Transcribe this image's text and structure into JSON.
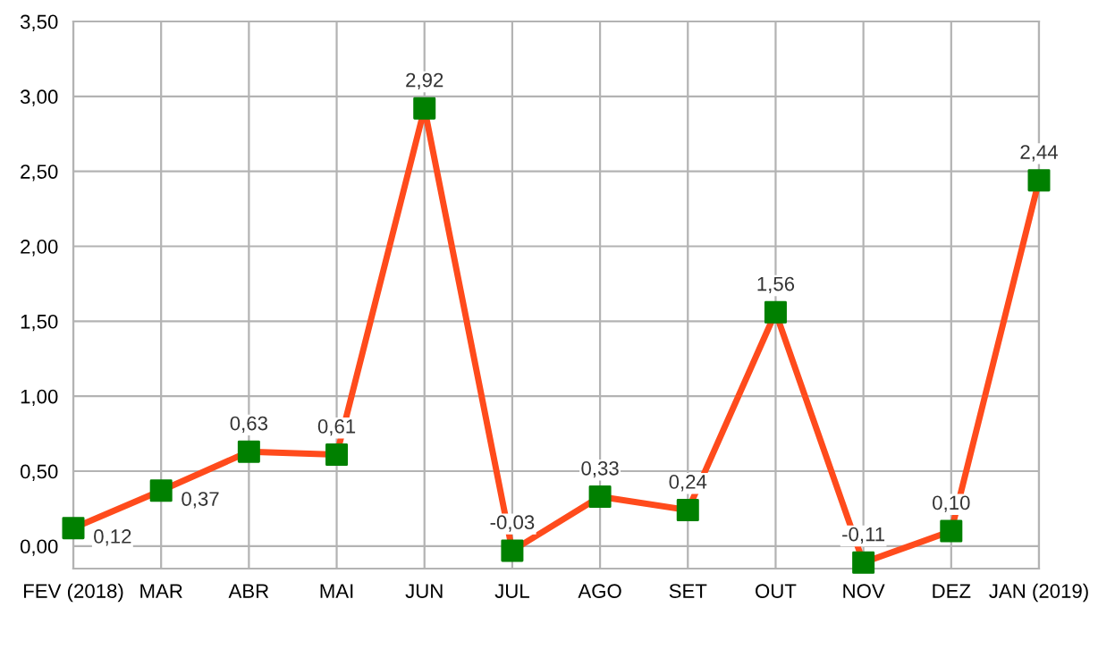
{
  "chart_data": {
    "type": "line",
    "categories": [
      "FEV (2018)",
      "MAR",
      "ABR",
      "MAI",
      "JUN",
      "JUL",
      "AGO",
      "SET",
      "OUT",
      "NOV",
      "DEZ",
      "JAN (2019)"
    ],
    "series": [
      {
        "color": "#ff4b1c",
        "colors": [
          "#008000",
          "#008000",
          "#008000",
          "#008000",
          "#008000",
          "#008000",
          "#008000",
          "#008000",
          "#008000",
          "#008000",
          "#008000",
          "#008000"
        ],
        "values": [
          0.12,
          0.37,
          0.63,
          0.61,
          2.92,
          -0.03,
          0.33,
          0.24,
          1.56,
          -0.11,
          0.1,
          2.44
        ],
        "value_labels": [
          "0,12",
          "0,37",
          "0,63",
          "0,61",
          "2,92",
          "-0,03",
          "0,33",
          "0,24",
          "1,56",
          "-0,11",
          "0,10",
          "2,44"
        ]
      }
    ],
    "marker": "square",
    "line_style": "solid",
    "grid": true,
    "legend": false,
    "ylim": [
      -0.15,
      3.5
    ],
    "yticks": [
      {
        "value": 0,
        "label": "0,00"
      },
      {
        "value": 0.5,
        "label": "0,50"
      },
      {
        "value": 1,
        "label": "1,00"
      },
      {
        "value": 1.5,
        "label": "1,50"
      },
      {
        "value": 2,
        "label": "2,00"
      },
      {
        "value": 2.5,
        "label": "2,50"
      },
      {
        "value": 3,
        "label": "3,00"
      },
      {
        "value": 3.5,
        "label": "3,50"
      }
    ]
  }
}
